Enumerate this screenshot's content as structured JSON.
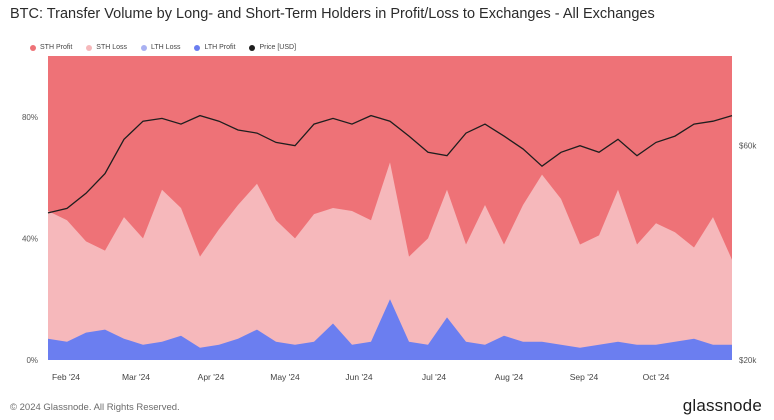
{
  "chart_data": {
    "type": "area",
    "title": "BTC: Transfer Volume by Long- and Short-Term Holders in Profit/Loss to Exchanges - All Exchanges",
    "stacking": "percent",
    "legend": {
      "placement": "top-left",
      "entries": [
        {
          "name": "STH Profit",
          "color": "#ee7277"
        },
        {
          "name": "STH Loss",
          "color": "#f6b8bb"
        },
        {
          "name": "LTH Loss",
          "color": "#a9b1f2"
        },
        {
          "name": "LTH Profit",
          "color": "#6b7ef0"
        },
        {
          "name": "Price [USD]",
          "color": "#1e1e1e"
        }
      ]
    },
    "x_ticks": [
      "Feb '24",
      "Mar '24",
      "Apr '24",
      "May '24",
      "Jun '24",
      "Jul '24",
      "Aug '24",
      "Sep '24",
      "Oct '24"
    ],
    "y_ticks_left": [
      "0%",
      "40%",
      "80%"
    ],
    "y_ticks_right": [
      "$20k",
      "$60k"
    ],
    "ylim_left": [
      0,
      100
    ],
    "ylim_right_log": [
      20000,
      95000
    ],
    "grid": false,
    "series_stacked": [
      {
        "name": "LTH Profit",
        "weekly_pct": [
          7,
          6,
          9,
          10,
          7,
          5,
          6,
          8,
          4,
          5,
          7,
          10,
          6,
          5,
          6,
          12,
          5,
          6,
          20,
          6,
          5,
          14,
          6,
          5,
          8,
          6,
          6,
          5,
          4,
          5,
          6,
          5,
          5,
          6,
          7,
          5,
          5
        ]
      },
      {
        "name": "STH Loss",
        "weekly_pct": [
          42,
          40,
          30,
          26,
          40,
          35,
          50,
          42,
          30,
          38,
          44,
          48,
          40,
          35,
          42,
          38,
          44,
          40,
          45,
          28,
          35,
          42,
          32,
          46,
          30,
          45,
          55,
          48,
          34,
          36,
          50,
          33,
          40,
          36,
          30,
          42,
          28
        ]
      },
      {
        "name": "STH Profit",
        "weekly_pct": [
          51,
          54,
          61,
          64,
          53,
          60,
          44,
          50,
          66,
          57,
          49,
          42,
          54,
          60,
          52,
          50,
          51,
          54,
          35,
          66,
          60,
          44,
          62,
          49,
          62,
          49,
          39,
          47,
          62,
          59,
          44,
          62,
          55,
          58,
          63,
          53,
          67
        ]
      }
    ],
    "price_series": {
      "name": "Price [USD]",
      "weekly_usd": [
        42500,
        43500,
        47000,
        52000,
        62000,
        68000,
        69000,
        67000,
        70000,
        68000,
        65000,
        64000,
        61000,
        60000,
        67000,
        69000,
        67000,
        70000,
        68000,
        63000,
        58000,
        57000,
        64000,
        67000,
        63000,
        59000,
        54000,
        58000,
        60000,
        58000,
        62000,
        57000,
        61000,
        63000,
        67000,
        68000,
        70000
      ]
    }
  },
  "footer": {
    "copyright": "© 2024 Glassnode. All Rights Reserved.",
    "brand": "glassnode"
  }
}
